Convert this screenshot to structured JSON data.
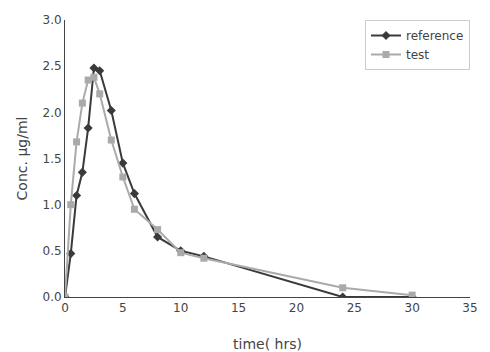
{
  "chart_data": {
    "type": "line",
    "xlabel": "time( hrs)",
    "ylabel": "Conc. μg/ml",
    "x": [
      0,
      0.5,
      1,
      1.5,
      2,
      2.5,
      3,
      4,
      5,
      6,
      8,
      10,
      12,
      24,
      30
    ],
    "series": [
      {
        "name": "reference",
        "color": "#3a3a3a",
        "marker": "diamond",
        "values": [
          0,
          0.47,
          1.1,
          1.35,
          1.83,
          2.48,
          2.45,
          2.02,
          1.45,
          1.12,
          0.65,
          0.5,
          0.44,
          0.0,
          0.0
        ]
      },
      {
        "name": "test",
        "color": "#aaaaaa",
        "marker": "square",
        "values": [
          0,
          1.0,
          1.68,
          2.1,
          2.35,
          2.38,
          2.2,
          1.7,
          1.3,
          0.95,
          0.73,
          0.48,
          0.42,
          0.1,
          0.02
        ]
      }
    ],
    "xlim": [
      0,
      35
    ],
    "ylim": [
      0,
      3
    ],
    "xticks": [
      0,
      5,
      10,
      15,
      20,
      25,
      30,
      35
    ],
    "yticks": [
      {
        "value": 0,
        "label": "0.0"
      },
      0.5,
      {
        "value": 1,
        "label": "1.0"
      },
      1.5,
      {
        "value": 2,
        "label": "2.0"
      },
      2.5,
      {
        "value": 3,
        "label": "3.0"
      }
    ],
    "grid": false,
    "legend": "upper right"
  }
}
